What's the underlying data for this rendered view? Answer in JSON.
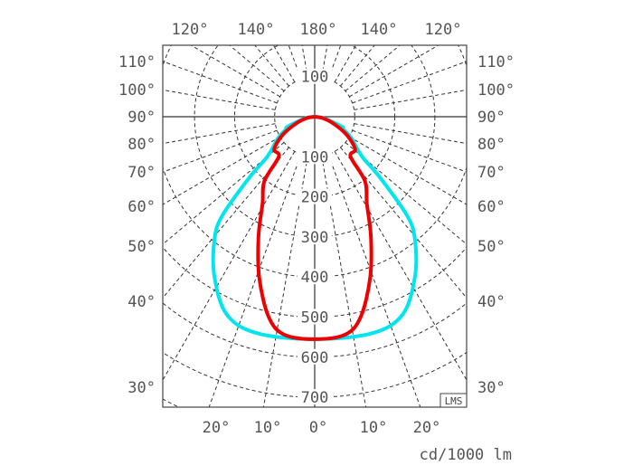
{
  "chart_data": {
    "type": "polar-line",
    "unit_label": "cd/1000 lm",
    "logo": "LMS",
    "radial_ticks": [
      100,
      200,
      300,
      400,
      500,
      600,
      700
    ],
    "radial_tick_upper": "100",
    "angle_labels_left": [
      "110°",
      "100°",
      "90°",
      "80°",
      "70°",
      "60°",
      "50°",
      "40°",
      "30°"
    ],
    "angle_labels_right": [
      "110°",
      "100°",
      "90°",
      "80°",
      "70°",
      "60°",
      "50°",
      "40°",
      "30°"
    ],
    "angle_labels_top": [
      "120°",
      "140°",
      "180°",
      "140°",
      "120°"
    ],
    "angle_labels_bottom": [
      "20°",
      "10°",
      "0°",
      "10°",
      "20°"
    ],
    "grid": true,
    "series": [
      {
        "color": "#00e5ee",
        "gamma_deg": [
          0,
          15,
          24,
          32,
          39,
          43,
          47,
          50,
          60,
          66,
          70,
          80,
          90
        ],
        "intensity": [
          555,
          559,
          540,
          472,
          398,
          340,
          224,
          154,
          105,
          79,
          72,
          25,
          0
        ]
      },
      {
        "color": "#ee0000",
        "gamma_deg": [
          0,
          8,
          13,
          19,
          25,
          31,
          38,
          42,
          51,
          60,
          70,
          80,
          90
        ],
        "intensity": [
          555,
          549,
          512,
          425,
          332,
          253,
          204,
          134,
          130,
          94,
          50,
          20,
          0
        ]
      }
    ]
  }
}
